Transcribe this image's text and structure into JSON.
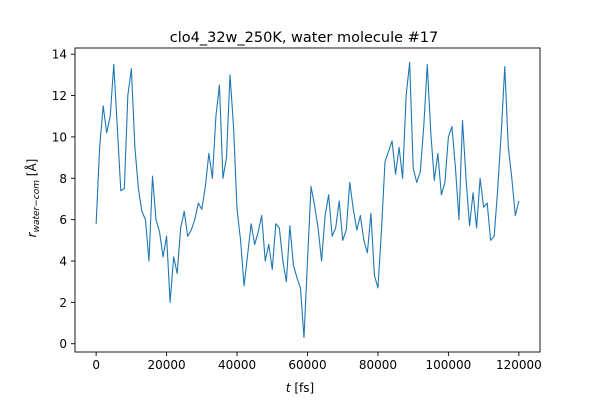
{
  "chart_data": {
    "type": "line",
    "title": "clo4_32w_250K, water molecule #17",
    "xlabel": "t [fs]",
    "ylabel": "r_water−com [Å]",
    "xlabel_parts": {
      "var": "t",
      "unit": " [fs]"
    },
    "ylabel_parts": {
      "var": "r",
      "sub": "water−com",
      "unit": " [Å]"
    },
    "xlim": [
      -6000,
      126000
    ],
    "ylim": [
      -0.4,
      14.3
    ],
    "xticks": [
      0,
      20000,
      40000,
      60000,
      80000,
      100000,
      120000
    ],
    "xtick_labels": [
      "0",
      "20000",
      "40000",
      "60000",
      "80000",
      "100000",
      "120000"
    ],
    "yticks": [
      0,
      2,
      4,
      6,
      8,
      10,
      12,
      14
    ],
    "ytick_labels": [
      "0",
      "2",
      "4",
      "6",
      "8",
      "10",
      "12",
      "14"
    ],
    "grid": false,
    "series": [
      {
        "color": "#1f77b4",
        "x": [
          0,
          1000,
          2000,
          3000,
          4000,
          5000,
          6000,
          7000,
          8000,
          9000,
          10000,
          11000,
          12000,
          13000,
          14000,
          15000,
          16000,
          17000,
          18000,
          19000,
          20000,
          21000,
          22000,
          23000,
          24000,
          25000,
          26000,
          27000,
          28000,
          29000,
          30000,
          31000,
          32000,
          33000,
          34000,
          35000,
          36000,
          37000,
          38000,
          39000,
          40000,
          41000,
          42000,
          43000,
          44000,
          45000,
          46000,
          47000,
          48000,
          49000,
          50000,
          51000,
          52000,
          53000,
          54000,
          55000,
          56000,
          57000,
          58000,
          59000,
          60000,
          61000,
          62000,
          63000,
          64000,
          65000,
          66000,
          67000,
          68000,
          69000,
          70000,
          71000,
          72000,
          73000,
          74000,
          75000,
          76000,
          77000,
          78000,
          79000,
          80000,
          81000,
          82000,
          83000,
          84000,
          85000,
          86000,
          87000,
          88000,
          89000,
          90000,
          91000,
          92000,
          93000,
          94000,
          95000,
          96000,
          97000,
          98000,
          99000,
          100000,
          101000,
          102000,
          103000,
          104000,
          105000,
          106000,
          107000,
          108000,
          109000,
          110000,
          111000,
          112000,
          113000,
          114000,
          115000,
          116000,
          117000,
          118000,
          119000,
          120000
        ],
        "y": [
          5.8,
          9.5,
          11.5,
          10.2,
          11.0,
          13.5,
          10.5,
          7.4,
          7.5,
          12.0,
          13.3,
          9.5,
          7.5,
          6.4,
          6.0,
          4.0,
          8.1,
          6.0,
          5.4,
          4.2,
          5.2,
          2.0,
          4.2,
          3.4,
          5.6,
          6.4,
          5.2,
          5.5,
          6.0,
          6.8,
          6.5,
          7.6,
          9.2,
          8.0,
          11.0,
          12.5,
          8.0,
          9.0,
          13.0,
          10.5,
          6.5,
          5.0,
          2.8,
          4.3,
          5.8,
          4.8,
          5.4,
          6.2,
          4.0,
          4.8,
          3.6,
          5.8,
          5.6,
          4.0,
          3.0,
          5.7,
          3.8,
          3.2,
          2.7,
          0.3,
          4.0,
          7.6,
          6.7,
          5.6,
          4.0,
          6.2,
          7.2,
          5.2,
          5.6,
          6.9,
          5.0,
          5.5,
          7.8,
          6.5,
          5.5,
          6.2,
          5.0,
          4.4,
          6.3,
          3.3,
          2.7,
          5.5,
          8.8,
          9.3,
          9.8,
          8.2,
          9.5,
          8.0,
          12.0,
          13.6,
          8.5,
          7.8,
          8.3,
          10.5,
          13.5,
          10.2,
          7.9,
          9.2,
          7.2,
          7.8,
          10.0,
          10.5,
          8.5,
          6.0,
          10.8,
          8.0,
          5.7,
          7.3,
          5.6,
          8.0,
          6.6,
          6.8,
          5.0,
          5.2,
          7.5,
          10.2,
          13.4,
          9.5,
          8.0,
          6.2,
          6.9
        ]
      }
    ]
  }
}
